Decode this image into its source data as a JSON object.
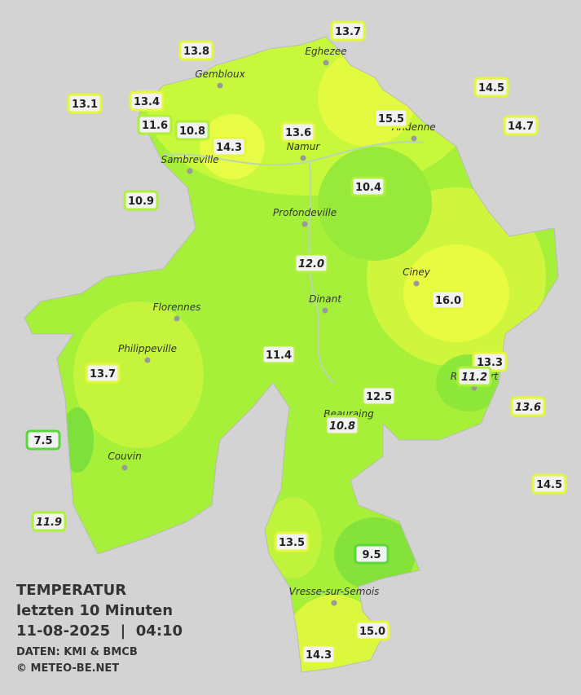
{
  "title": {
    "lines": [
      "TEMPERATUR",
      "letzten 10 Minuten",
      "11-08-2025  |  04:10"
    ],
    "sources": [
      "DATEN: KMI & BMCB",
      "© METEO-BE.NET"
    ]
  },
  "towns": [
    "Eghezee",
    "Gembloux",
    "Andenne",
    "Namur",
    "Sambreville",
    "Profondeville",
    "Ciney",
    "Dinant",
    "Florennes",
    "Philippeville",
    "Rochefort",
    "Beauraing",
    "Couvin",
    "Vresse-sur-Semois"
  ],
  "stations": [
    "13.7",
    "13.8",
    "14.5",
    "13.1",
    "13.4",
    "15.5",
    "14.7",
    "11.6",
    "10.8",
    "13.6",
    "14.3",
    "10.4",
    "10.9",
    "12.0",
    "16.0",
    "11.4",
    "13.3",
    "11.2",
    "13.7",
    "12.5",
    "13.6",
    "10.8",
    "7.5",
    "14.5",
    "11.9",
    "13.5",
    "9.5",
    "15.0",
    "14.3"
  ]
}
